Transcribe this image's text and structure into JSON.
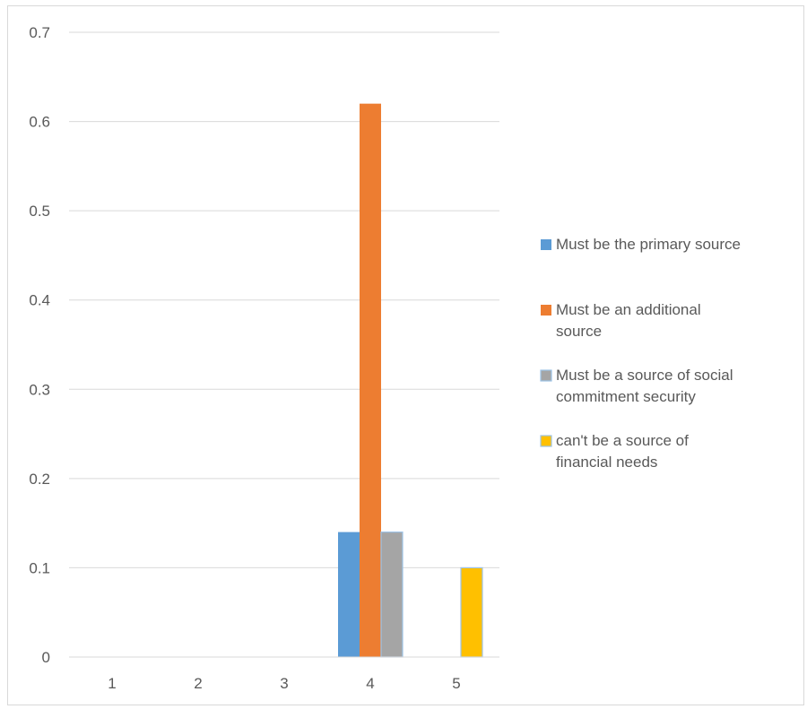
{
  "chart_data": {
    "type": "bar",
    "title": "",
    "xlabel": "",
    "ylabel": "",
    "categories": [
      "1",
      "2",
      "3",
      "4",
      "5"
    ],
    "ylim": [
      0,
      0.7
    ],
    "yticks": [
      "0",
      "0.1",
      "0.2",
      "0.3",
      "0.4",
      "0.5",
      "0.6",
      "0.7"
    ],
    "grid": true,
    "legend_position": "right",
    "series": [
      {
        "name": "Must be the primary source",
        "color": "#5b9bd5",
        "values": [
          0,
          0,
          0,
          0.14,
          0
        ]
      },
      {
        "name": "Must be an additional source",
        "color": "#ed7d31",
        "values": [
          0,
          0,
          0,
          0.62,
          0
        ]
      },
      {
        "name": "Must be a source of social commitment security",
        "color": "#a5a5a5",
        "values": [
          0,
          0,
          0,
          0.14,
          0
        ]
      },
      {
        "name": "can't be a source of financial needs",
        "color": "#ffc000",
        "values": [
          0,
          0,
          0,
          0,
          0.1
        ]
      }
    ]
  }
}
